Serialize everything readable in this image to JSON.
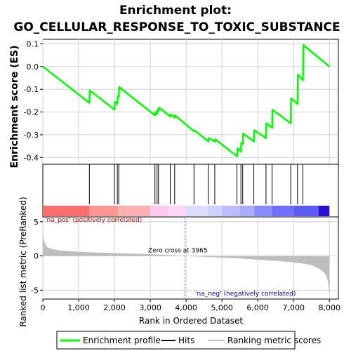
{
  "chart_data": {
    "type": "line",
    "title_line1": "Enrichment plot:",
    "title_line2": "GO_CELLULAR_RESPONSE_TO_TOXIC_SUBSTANCE",
    "es_panel": {
      "ylabel": "Enrichment score (ES)",
      "ylim": [
        -0.43,
        0.12
      ],
      "yticks": [
        0.1,
        0.0,
        -0.1,
        -0.2,
        -0.3,
        -0.4
      ],
      "ytick_labels": [
        "0.1",
        "0.0",
        "-0.1",
        "-0.2",
        "-0.3",
        "-0.4"
      ],
      "line_color": "#00ff00",
      "profile_x": [
        0,
        1300,
        1310,
        2000,
        2010,
        2080,
        2090,
        2120,
        2130,
        3130,
        3140,
        3190,
        3200,
        3230,
        3240,
        3560,
        3570,
        3680,
        3690,
        4220,
        4230,
        4620,
        4630,
        4800,
        4810,
        5420,
        5430,
        5530,
        5540,
        5580,
        5590,
        5890,
        5900,
        6230,
        6240,
        6400,
        6410,
        6920,
        6930,
        7110,
        7120,
        7260,
        7270,
        8000
      ],
      "profile_y": [
        0.0,
        -0.16,
        -0.105,
        -0.19,
        -0.155,
        -0.165,
        -0.13,
        -0.135,
        -0.09,
        -0.215,
        -0.2,
        -0.21,
        -0.19,
        -0.195,
        -0.18,
        -0.22,
        -0.21,
        -0.225,
        -0.215,
        -0.285,
        -0.28,
        -0.33,
        -0.315,
        -0.33,
        -0.32,
        -0.395,
        -0.36,
        -0.375,
        -0.335,
        -0.34,
        -0.295,
        -0.33,
        -0.28,
        -0.315,
        -0.25,
        -0.27,
        -0.19,
        -0.25,
        -0.14,
        -0.165,
        -0.035,
        -0.06,
        0.095,
        0.0
      ]
    },
    "hits_panel": {
      "hit_positions": [
        1300,
        2000,
        2080,
        2120,
        3130,
        3190,
        3230,
        3560,
        3680,
        4220,
        4620,
        4800,
        5420,
        5530,
        5580,
        5890,
        6230,
        6400,
        6920,
        7110,
        7260
      ],
      "color_segments": [
        {
          "from": 0,
          "to": 1300,
          "color": "#ff6d6d"
        },
        {
          "from": 1300,
          "to": 2100,
          "color": "#ff9696"
        },
        {
          "from": 2100,
          "to": 3000,
          "color": "#ffb0b0"
        },
        {
          "from": 3000,
          "to": 3500,
          "color": "#ffc8ec"
        },
        {
          "from": 3500,
          "to": 4000,
          "color": "#fad6fa"
        },
        {
          "from": 4000,
          "to": 4600,
          "color": "#dcdcff"
        },
        {
          "from": 4600,
          "to": 5000,
          "color": "#d0d0ff"
        },
        {
          "from": 5000,
          "to": 5500,
          "color": "#bcbcff"
        },
        {
          "from": 5500,
          "to": 5900,
          "color": "#aaaaff"
        },
        {
          "from": 5900,
          "to": 6400,
          "color": "#8a8aff"
        },
        {
          "from": 6400,
          "to": 7000,
          "color": "#6e6eff"
        },
        {
          "from": 7000,
          "to": 7700,
          "color": "#5a5af5"
        },
        {
          "from": 7700,
          "to": 8000,
          "color": "#2a0fd2"
        }
      ]
    },
    "rank_panel": {
      "ylabel": "Ranked list metric (PreRanked)",
      "ylim": [
        -6.3,
        5.7
      ],
      "yticks": [
        5,
        0,
        -5
      ],
      "ytick_labels": [
        "5",
        "0",
        "-5"
      ],
      "zero_cross_label": "Zero cross at 3965",
      "zero_cross": 3965,
      "pos_label": "'na_pos' (positively correlated)",
      "neg_label": "'na_neg' (negatively correlated)",
      "metric_x": [
        0,
        5,
        20,
        60,
        120,
        250,
        500,
        1000,
        1500,
        2000,
        2500,
        3000,
        3500,
        3965,
        4500,
        5000,
        5500,
        6000,
        6500,
        7000,
        7300,
        7500,
        7700,
        7850,
        7920,
        7960,
        7990,
        8000
      ],
      "metric_y": [
        4.5,
        3.6,
        2.6,
        1.8,
        1.3,
        1.0,
        0.8,
        0.6,
        0.5,
        0.42,
        0.35,
        0.25,
        0.12,
        0.0,
        -0.12,
        -0.25,
        -0.38,
        -0.55,
        -0.72,
        -0.95,
        -1.15,
        -1.35,
        -1.8,
        -2.4,
        -3.0,
        -3.8,
        -5.2,
        -6.0
      ],
      "fill_color": "#bebebe"
    },
    "xaxis": {
      "label": "Rank in Ordered Dataset",
      "xlim": [
        0,
        8250
      ],
      "xticks": [
        0,
        1000,
        2000,
        3000,
        4000,
        5000,
        6000,
        7000,
        8000
      ],
      "xtick_labels": [
        "0",
        "1,000",
        "2,000",
        "3,000",
        "4,000",
        "5,000",
        "6,000",
        "7,000",
        "8,000"
      ]
    },
    "legend": [
      {
        "label": "Enrichment profile",
        "color": "#00ff00"
      },
      {
        "label": "Hits",
        "color": "#000000"
      },
      {
        "label": "Ranking metric scores",
        "color": "#bebebe"
      }
    ]
  }
}
